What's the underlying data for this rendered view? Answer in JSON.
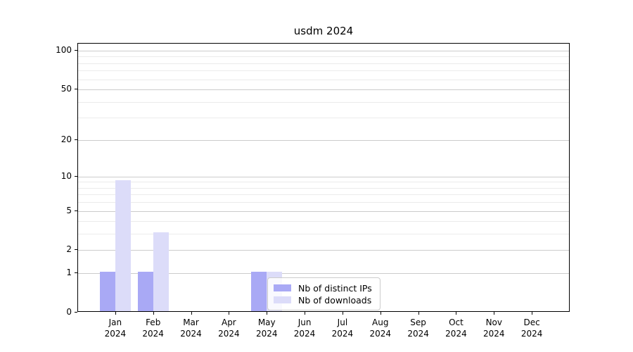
{
  "chart_data": {
    "type": "bar",
    "title": "usdm 2024",
    "x": {
      "months": [
        "Jan",
        "Feb",
        "Mar",
        "Apr",
        "May",
        "Jun",
        "Jul",
        "Aug",
        "Sep",
        "Oct",
        "Nov",
        "Dec"
      ],
      "year": "2024"
    },
    "series": [
      {
        "name": "Nb of distinct IPs",
        "color": "#a9a9f5",
        "values": [
          1,
          1,
          0,
          0,
          1,
          0,
          0,
          0,
          0,
          0,
          0,
          0
        ]
      },
      {
        "name": "Nb of downloads",
        "color": "#dcdcf9",
        "values": [
          9,
          3,
          0,
          0,
          1,
          0,
          0,
          0,
          0,
          0,
          0,
          0
        ]
      }
    ],
    "y_axis": {
      "scale": "log1p",
      "ticks": [
        0,
        1,
        2,
        5,
        10,
        20,
        50,
        100
      ],
      "minor_ticks": [
        3,
        4,
        6,
        7,
        8,
        9,
        30,
        40,
        60,
        70,
        80,
        90
      ],
      "range": [
        0,
        100
      ]
    },
    "grid": true,
    "legend_position": "inside-bottom-center"
  },
  "colors": {
    "grid_major": "#cccccc",
    "grid_minor": "#ebebeb",
    "spine": "#000000",
    "background": "#ffffff"
  }
}
